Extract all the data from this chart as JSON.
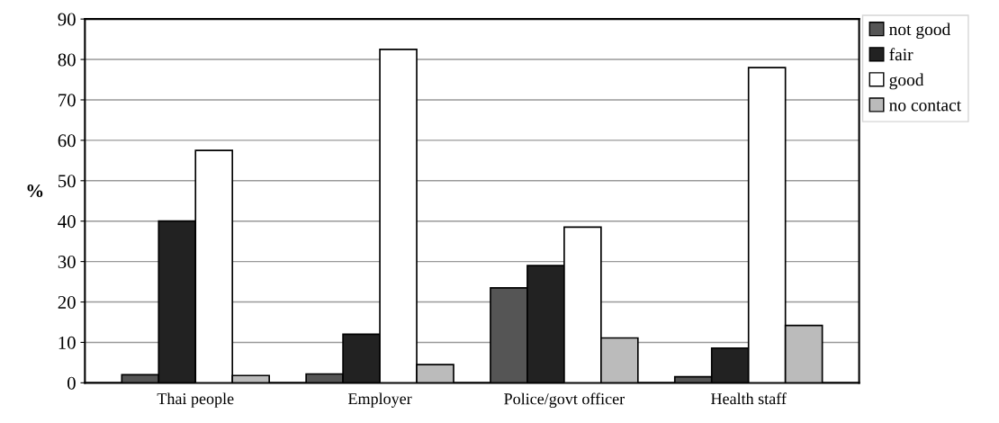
{
  "chart_data": {
    "type": "bar",
    "ylabel": "%",
    "categories": [
      "Thai people",
      "Employer",
      "Police/govt officer",
      "Health staff"
    ],
    "series": [
      {
        "name": "not good",
        "color": "#555555",
        "values": [
          2,
          2.2,
          23.5,
          1.5
        ]
      },
      {
        "name": "fair",
        "color": "#222222",
        "values": [
          40,
          12,
          29,
          8.6
        ]
      },
      {
        "name": "good",
        "color": "#ffffff",
        "values": [
          57.5,
          82.5,
          38.5,
          78
        ]
      },
      {
        "name": "no contact",
        "color": "#bbbbbb",
        "values": [
          1.8,
          4.5,
          11.1,
          14.2
        ]
      }
    ],
    "ylim": [
      0,
      90
    ],
    "yticks": [
      0,
      10,
      20,
      30,
      40,
      50,
      60,
      70,
      80,
      90
    ],
    "grid": "y",
    "legend": "top right"
  }
}
